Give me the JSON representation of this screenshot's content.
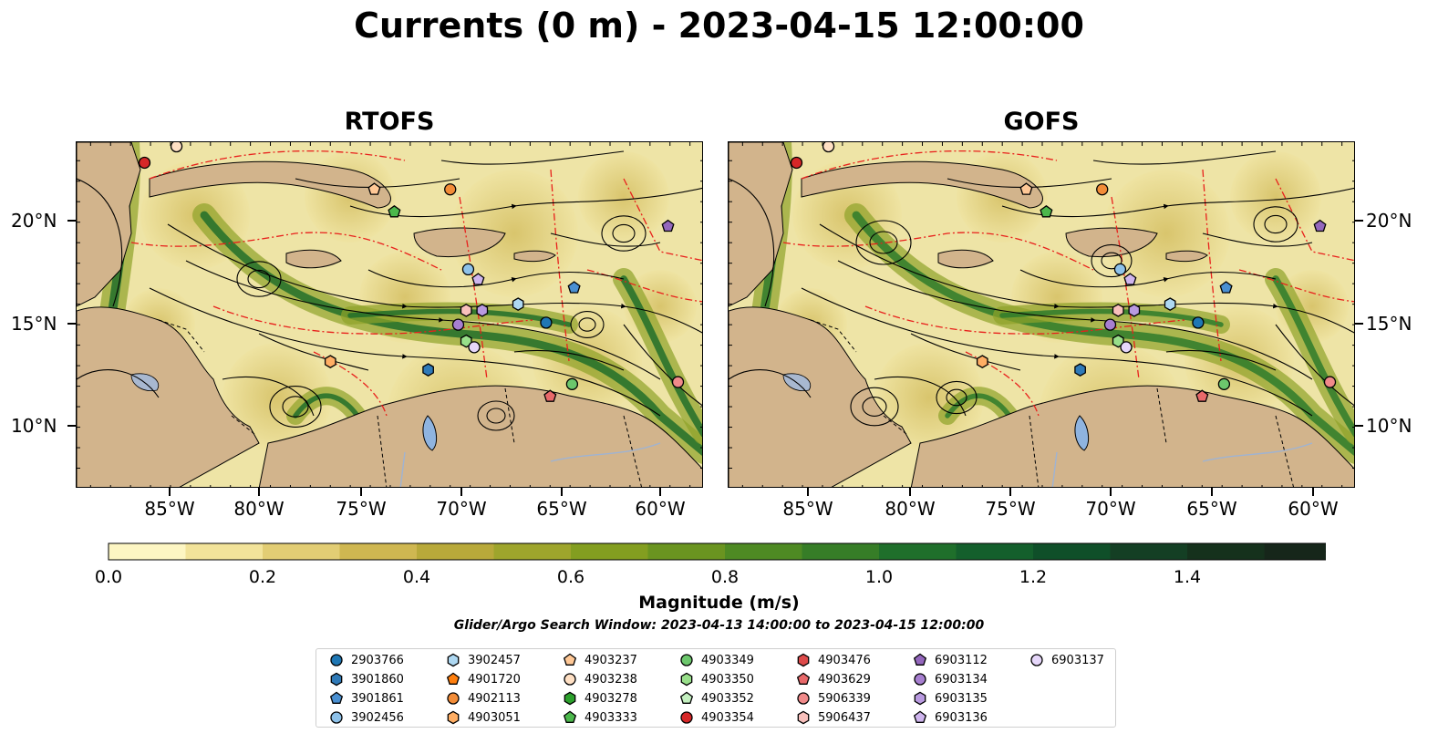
{
  "title": "Currents (0 m) - 2023-04-15 12:00:00",
  "panels": [
    {
      "title": "RTOFS"
    },
    {
      "title": "GOFS"
    }
  ],
  "x_ticks": [
    "85°W",
    "80°W",
    "75°W",
    "70°W",
    "65°W",
    "60°W"
  ],
  "y_ticks": [
    "20°N",
    "15°N",
    "10°N"
  ],
  "colorbar": {
    "label": "Magnitude (m/s)",
    "ticks": [
      "0.0",
      "0.2",
      "0.4",
      "0.6",
      "0.8",
      "1.0",
      "1.2",
      "1.4"
    ],
    "colors": [
      "#fdf6c3",
      "#f2e39a",
      "#e2cd74",
      "#cfb751",
      "#b8a93a",
      "#9ea52c",
      "#839e20",
      "#6a9420",
      "#4e8a23",
      "#367d27",
      "#1f6f2b",
      "#145f2c",
      "#0f4f29",
      "#143f24",
      "#15311c",
      "#16261a"
    ]
  },
  "search_window": "Glider/Argo Search Window: 2023-04-13 14:00:00 to 2023-04-15 12:00:00",
  "legend": [
    {
      "label": "2903766",
      "shape": "circle",
      "color": "#1f77b4"
    },
    {
      "label": "3901860",
      "shape": "hexagon",
      "color": "#2f7ab8"
    },
    {
      "label": "3901861",
      "shape": "pentagon",
      "color": "#4a90d2"
    },
    {
      "label": "3902456",
      "shape": "circle",
      "color": "#8ec2ea"
    },
    {
      "label": "3902457",
      "shape": "hexagon",
      "color": "#aed8f2"
    },
    {
      "label": "4901720",
      "shape": "pentagon",
      "color": "#ff7f0e"
    },
    {
      "label": "4902113",
      "shape": "circle",
      "color": "#f28c38"
    },
    {
      "label": "4903051",
      "shape": "hexagon",
      "color": "#ffae64"
    },
    {
      "label": "4903237",
      "shape": "pentagon",
      "color": "#ffc896"
    },
    {
      "label": "4903238",
      "shape": "circle",
      "color": "#ffe0c4"
    },
    {
      "label": "4903278",
      "shape": "hexagon",
      "color": "#2ca02c"
    },
    {
      "label": "4903333",
      "shape": "pentagon",
      "color": "#4cb84c"
    },
    {
      "label": "4903349",
      "shape": "circle",
      "color": "#6cc76c"
    },
    {
      "label": "4903350",
      "shape": "hexagon",
      "color": "#98df8a"
    },
    {
      "label": "4903352",
      "shape": "pentagon",
      "color": "#c4f0c0"
    },
    {
      "label": "4903354",
      "shape": "circle",
      "color": "#d62728"
    },
    {
      "label": "4903476",
      "shape": "hexagon",
      "color": "#dd4a4a"
    },
    {
      "label": "4903629",
      "shape": "pentagon",
      "color": "#e8696a"
    },
    {
      "label": "5906339",
      "shape": "circle",
      "color": "#f08a8a"
    },
    {
      "label": "5906437",
      "shape": "hexagon",
      "color": "#f8c0bc"
    },
    {
      "label": "6903112",
      "shape": "pentagon",
      "color": "#9467bd"
    },
    {
      "label": "6903134",
      "shape": "circle",
      "color": "#a77fd0"
    },
    {
      "label": "6903135",
      "shape": "hexagon",
      "color": "#b99ae0"
    },
    {
      "label": "6903136",
      "shape": "pentagon",
      "color": "#cfb5ee"
    },
    {
      "label": "6903137",
      "shape": "circle",
      "color": "#e6d7fa"
    }
  ],
  "floats": [
    {
      "id": "4903354",
      "lon": -86.3,
      "lat": 22.9
    },
    {
      "id": "4903238",
      "lon": -84.7,
      "lat": 23.7
    },
    {
      "id": "4903237",
      "lon": -74.8,
      "lat": 21.6
    },
    {
      "id": "4902113",
      "lon": -71.0,
      "lat": 21.6
    },
    {
      "id": "4903333",
      "lon": -73.8,
      "lat": 20.5
    },
    {
      "id": "6903112",
      "lon": -60.1,
      "lat": 19.8
    },
    {
      "id": "3902456",
      "lon": -70.1,
      "lat": 17.7
    },
    {
      "id": "6903136",
      "lon": -69.6,
      "lat": 17.2
    },
    {
      "id": "3901861",
      "lon": -64.8,
      "lat": 16.8
    },
    {
      "id": "3902457",
      "lon": -67.6,
      "lat": 16.0
    },
    {
      "id": "5906437",
      "lon": -70.2,
      "lat": 15.7
    },
    {
      "id": "6903135",
      "lon": -69.4,
      "lat": 15.7
    },
    {
      "id": "6903134",
      "lon": -70.6,
      "lat": 15.0
    },
    {
      "id": "2903766",
      "lon": -66.2,
      "lat": 15.1
    },
    {
      "id": "4903350",
      "lon": -70.2,
      "lat": 14.2
    },
    {
      "id": "6903137",
      "lon": -69.8,
      "lat": 13.9
    },
    {
      "id": "4903051",
      "lon": -77.0,
      "lat": 13.2
    },
    {
      "id": "3901860",
      "lon": -72.1,
      "lat": 12.8
    },
    {
      "id": "4903349",
      "lon": -64.9,
      "lat": 12.1
    },
    {
      "id": "5906339",
      "lon": -59.6,
      "lat": 12.2
    },
    {
      "id": "4903629",
      "lon": -66.0,
      "lat": 11.5
    }
  ]
}
